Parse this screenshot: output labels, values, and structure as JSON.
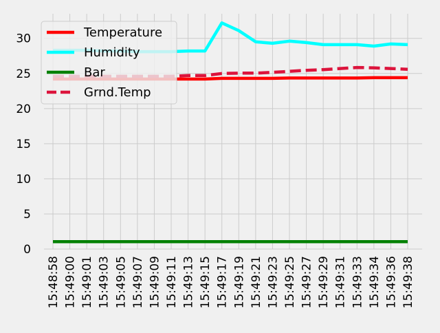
{
  "chart_data": {
    "type": "line",
    "title": "",
    "xlabel": "",
    "ylabel": "",
    "x": [
      "15:48:58",
      "15:49:00",
      "15:49:01",
      "15:49:03",
      "15:49:05",
      "15:49:07",
      "15:49:09",
      "15:49:11",
      "15:49:13",
      "15:49:15",
      "15:49:17",
      "15:49:19",
      "15:49:21",
      "15:49:23",
      "15:49:25",
      "15:49:27",
      "15:49:29",
      "15:49:31",
      "15:49:33",
      "15:49:34",
      "15:49:36",
      "15:49:38"
    ],
    "ylim": [
      0,
      33.5
    ],
    "yticks": [
      0,
      5,
      10,
      15,
      20,
      25,
      30
    ],
    "grid": true,
    "legend_position": "top-left",
    "series": [
      {
        "name": "Temperature",
        "color": "#ff0000",
        "style": "solid",
        "values": [
          24.2,
          24.2,
          24.2,
          24.2,
          24.2,
          24.2,
          24.2,
          24.2,
          24.2,
          24.2,
          24.3,
          24.3,
          24.3,
          24.3,
          24.35,
          24.35,
          24.35,
          24.35,
          24.35,
          24.4,
          24.4,
          24.4
        ]
      },
      {
        "name": "Humidity",
        "color": "#00ffff",
        "style": "solid",
        "values": [
          28.3,
          28.3,
          28.3,
          28.2,
          28.2,
          28.1,
          28.1,
          28.1,
          28.2,
          28.2,
          32.2,
          31.1,
          29.5,
          29.3,
          29.6,
          29.4,
          29.1,
          29.1,
          29.1,
          28.9,
          29.2,
          29.1
        ]
      },
      {
        "name": "Bar",
        "color": "#008000",
        "style": "solid",
        "values": [
          1.05,
          1.05,
          1.05,
          1.05,
          1.05,
          1.05,
          1.05,
          1.05,
          1.05,
          1.05,
          1.05,
          1.05,
          1.05,
          1.05,
          1.05,
          1.05,
          1.05,
          1.05,
          1.05,
          1.05,
          1.05,
          1.05
        ]
      },
      {
        "name": "Grnd.Temp",
        "color": "#dc143c",
        "style": "dashed",
        "values": [
          24.6,
          24.6,
          24.6,
          24.6,
          24.6,
          24.6,
          24.6,
          24.6,
          24.7,
          24.7,
          25.0,
          25.05,
          25.05,
          25.15,
          25.3,
          25.45,
          25.55,
          25.7,
          25.85,
          25.8,
          25.7,
          25.6
        ]
      }
    ]
  }
}
